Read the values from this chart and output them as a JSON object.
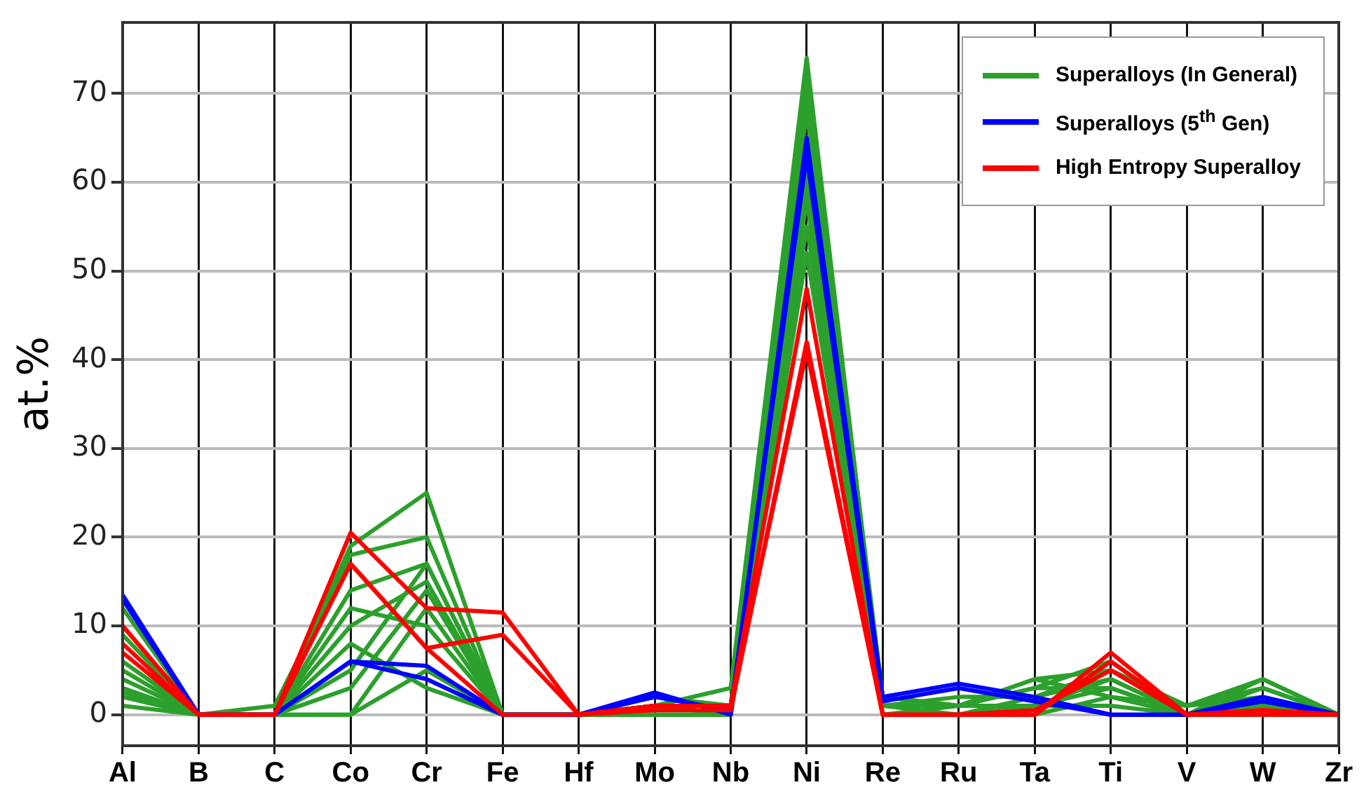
{
  "chart_data": {
    "type": "line",
    "ylabel": "at.%",
    "categories": [
      "Al",
      "B",
      "C",
      "Co",
      "Cr",
      "Fe",
      "Hf",
      "Mo",
      "Nb",
      "Ni",
      "Re",
      "Ru",
      "Ta",
      "Ti",
      "V",
      "W",
      "Zr"
    ],
    "ylim": [
      -3.5,
      78
    ],
    "yticks": [
      0,
      10,
      20,
      30,
      40,
      50,
      60,
      70
    ],
    "grid": true,
    "legend": "top right",
    "marker": "none",
    "series": [
      {
        "name": "Superalloys (In General)",
        "color": "#2ca02c",
        "values": [
          12,
          0,
          0,
          19,
          25,
          0,
          0,
          1,
          3,
          74,
          1,
          1,
          4,
          2,
          1,
          4,
          0
        ]
      },
      {
        "color": "#2ca02c",
        "values": [
          9,
          0,
          1,
          18,
          20,
          0,
          0,
          1,
          1,
          70,
          2,
          1,
          3,
          6,
          0,
          3,
          0
        ]
      },
      {
        "color": "#2ca02c",
        "values": [
          6,
          0,
          0,
          14,
          17,
          0,
          0,
          2,
          1,
          65,
          1,
          2,
          2,
          5,
          1,
          2,
          0
        ]
      },
      {
        "color": "#2ca02c",
        "values": [
          4,
          0,
          0,
          12,
          10,
          0,
          0,
          1,
          0,
          62,
          1,
          0,
          1,
          4,
          0,
          1,
          0
        ]
      },
      {
        "color": "#2ca02c",
        "values": [
          2,
          0,
          0,
          10,
          15,
          0,
          0,
          0,
          0,
          60,
          0,
          1,
          1,
          3,
          0,
          0,
          0
        ]
      },
      {
        "color": "#2ca02c",
        "values": [
          1,
          0,
          0,
          0,
          5,
          0,
          0,
          0,
          0,
          55,
          0,
          0,
          0,
          2,
          0,
          0,
          0
        ]
      },
      {
        "color": "#2ca02c",
        "values": [
          3,
          0,
          0,
          8,
          3,
          0,
          0,
          1,
          1,
          58,
          0,
          0,
          2,
          4,
          0,
          4,
          0
        ]
      },
      {
        "color": "#2ca02c",
        "values": [
          5,
          0,
          0,
          0,
          12,
          0,
          0,
          2,
          1,
          68,
          1,
          1,
          3,
          3,
          0,
          2,
          0
        ]
      },
      {
        "color": "#2ca02c",
        "values": [
          10,
          0,
          0,
          5,
          17,
          0,
          0,
          1,
          0,
          72,
          2,
          1,
          4,
          5,
          1,
          3,
          0
        ]
      },
      {
        "color": "#2ca02c",
        "values": [
          2.5,
          0,
          0,
          3,
          14,
          0,
          0,
          0,
          0,
          52,
          0,
          0,
          1,
          1,
          0,
          1,
          0
        ]
      },
      {
        "name": "Superalloys (5$^{th}$ Gen)",
        "color": "#0000ff",
        "values": [
          13.5,
          0,
          0,
          6,
          5.5,
          0,
          0,
          2.5,
          0,
          65,
          2,
          3.5,
          2,
          0,
          0,
          2,
          0
        ]
      },
      {
        "color": "#0000ff",
        "values": [
          13,
          0,
          0,
          6,
          4,
          0,
          0,
          2,
          0.5,
          63,
          1.5,
          3,
          1.5,
          0,
          0,
          1.5,
          0
        ]
      },
      {
        "name": "High Entropy Superalloy",
        "color": "#ff0000",
        "values": [
          10,
          0,
          0,
          20.5,
          12,
          11.5,
          0,
          1,
          1,
          48,
          0,
          0,
          0,
          7,
          0,
          0.5,
          0
        ]
      },
      {
        "color": "#ff0000",
        "values": [
          8,
          0,
          0,
          17,
          7.5,
          9,
          0,
          0.5,
          0.5,
          42,
          0,
          0,
          0,
          6,
          0,
          0,
          0
        ]
      },
      {
        "color": "#ff0000",
        "values": [
          7,
          0,
          0,
          17,
          7.5,
          0,
          0,
          1,
          1,
          41,
          0,
          0,
          0.5,
          5,
          0,
          0.5,
          0
        ]
      }
    ]
  }
}
